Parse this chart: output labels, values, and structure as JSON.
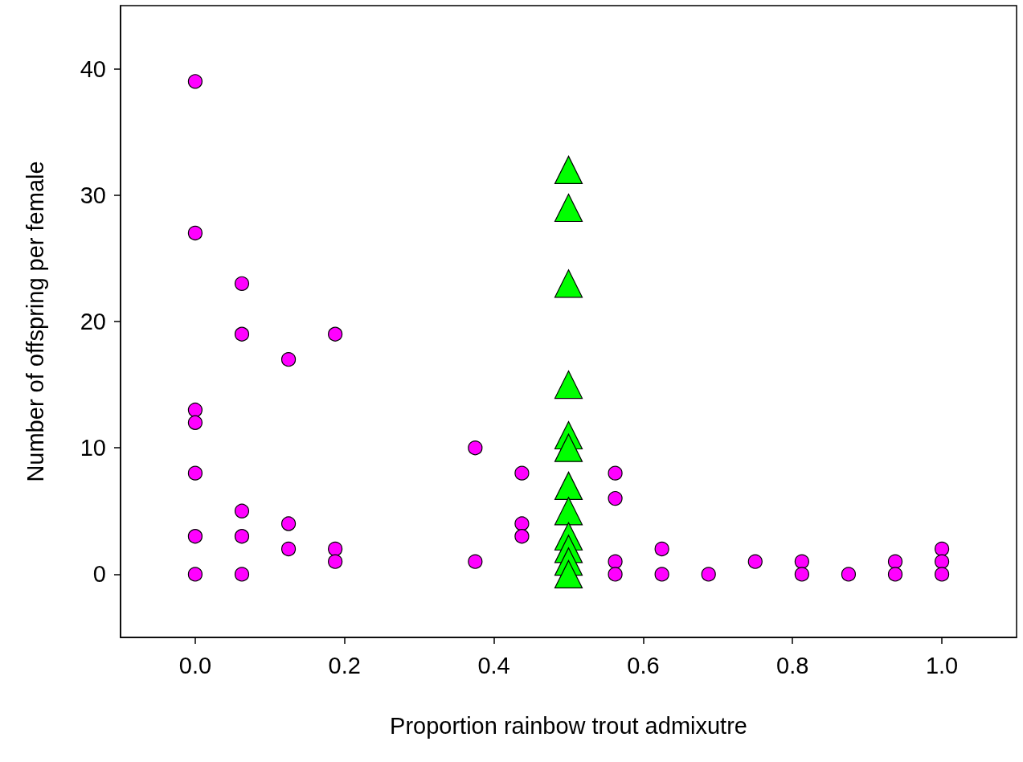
{
  "chart_data": {
    "type": "scatter",
    "xlabel": "Proportion rainbow trout admixutre",
    "ylabel": "Number of offspring per female",
    "xlim": [
      -0.1,
      1.1
    ],
    "ylim": [
      -5,
      45
    ],
    "xticks": [
      {
        "value": 0,
        "label": "0.0"
      },
      {
        "value": 0.2,
        "label": "0.2"
      },
      {
        "value": 0.4,
        "label": "0.4"
      },
      {
        "value": 0.6,
        "label": "0.6"
      },
      {
        "value": 0.8,
        "label": "0.8"
      },
      {
        "value": 1,
        "label": "1.0"
      }
    ],
    "yticks": [
      0,
      10,
      20,
      30,
      40
    ],
    "grid": false,
    "series": [
      {
        "color": "#ff00ff",
        "marker": "circle",
        "x": [
          0,
          0,
          0,
          0,
          0,
          0,
          0,
          0.0625,
          0.0625,
          0.0625,
          0.0625,
          0.0625,
          0.125,
          0.125,
          0.125,
          0.1875,
          0.1875,
          0.1875,
          0.375,
          0.375,
          0.4375,
          0.4375,
          0.4375,
          0.5625,
          0.5625,
          0.5625,
          0.5625,
          0.625,
          0.625,
          0.6875,
          0.75,
          0.8125,
          0.8125,
          0.875,
          0.9375,
          0.9375,
          1,
          1,
          1
        ],
        "values": [
          39,
          27,
          13,
          12,
          8,
          3,
          0,
          23,
          19,
          5,
          3,
          0,
          17,
          4,
          2,
          19,
          2,
          1,
          10,
          1,
          8,
          4,
          3,
          8,
          6,
          1,
          0,
          2,
          0,
          0,
          1,
          1,
          0,
          0,
          1,
          0,
          2,
          1,
          0
        ]
      },
      {
        "color": "#00ff00",
        "marker": "triangle",
        "x": [
          0.5,
          0.5,
          0.5,
          0.5,
          0.5,
          0.5,
          0.5,
          0.5,
          0.5,
          0.5,
          0.5,
          0.5
        ],
        "values": [
          32,
          29,
          23,
          15,
          11,
          10,
          7,
          5,
          3,
          2,
          1,
          0
        ]
      }
    ]
  }
}
